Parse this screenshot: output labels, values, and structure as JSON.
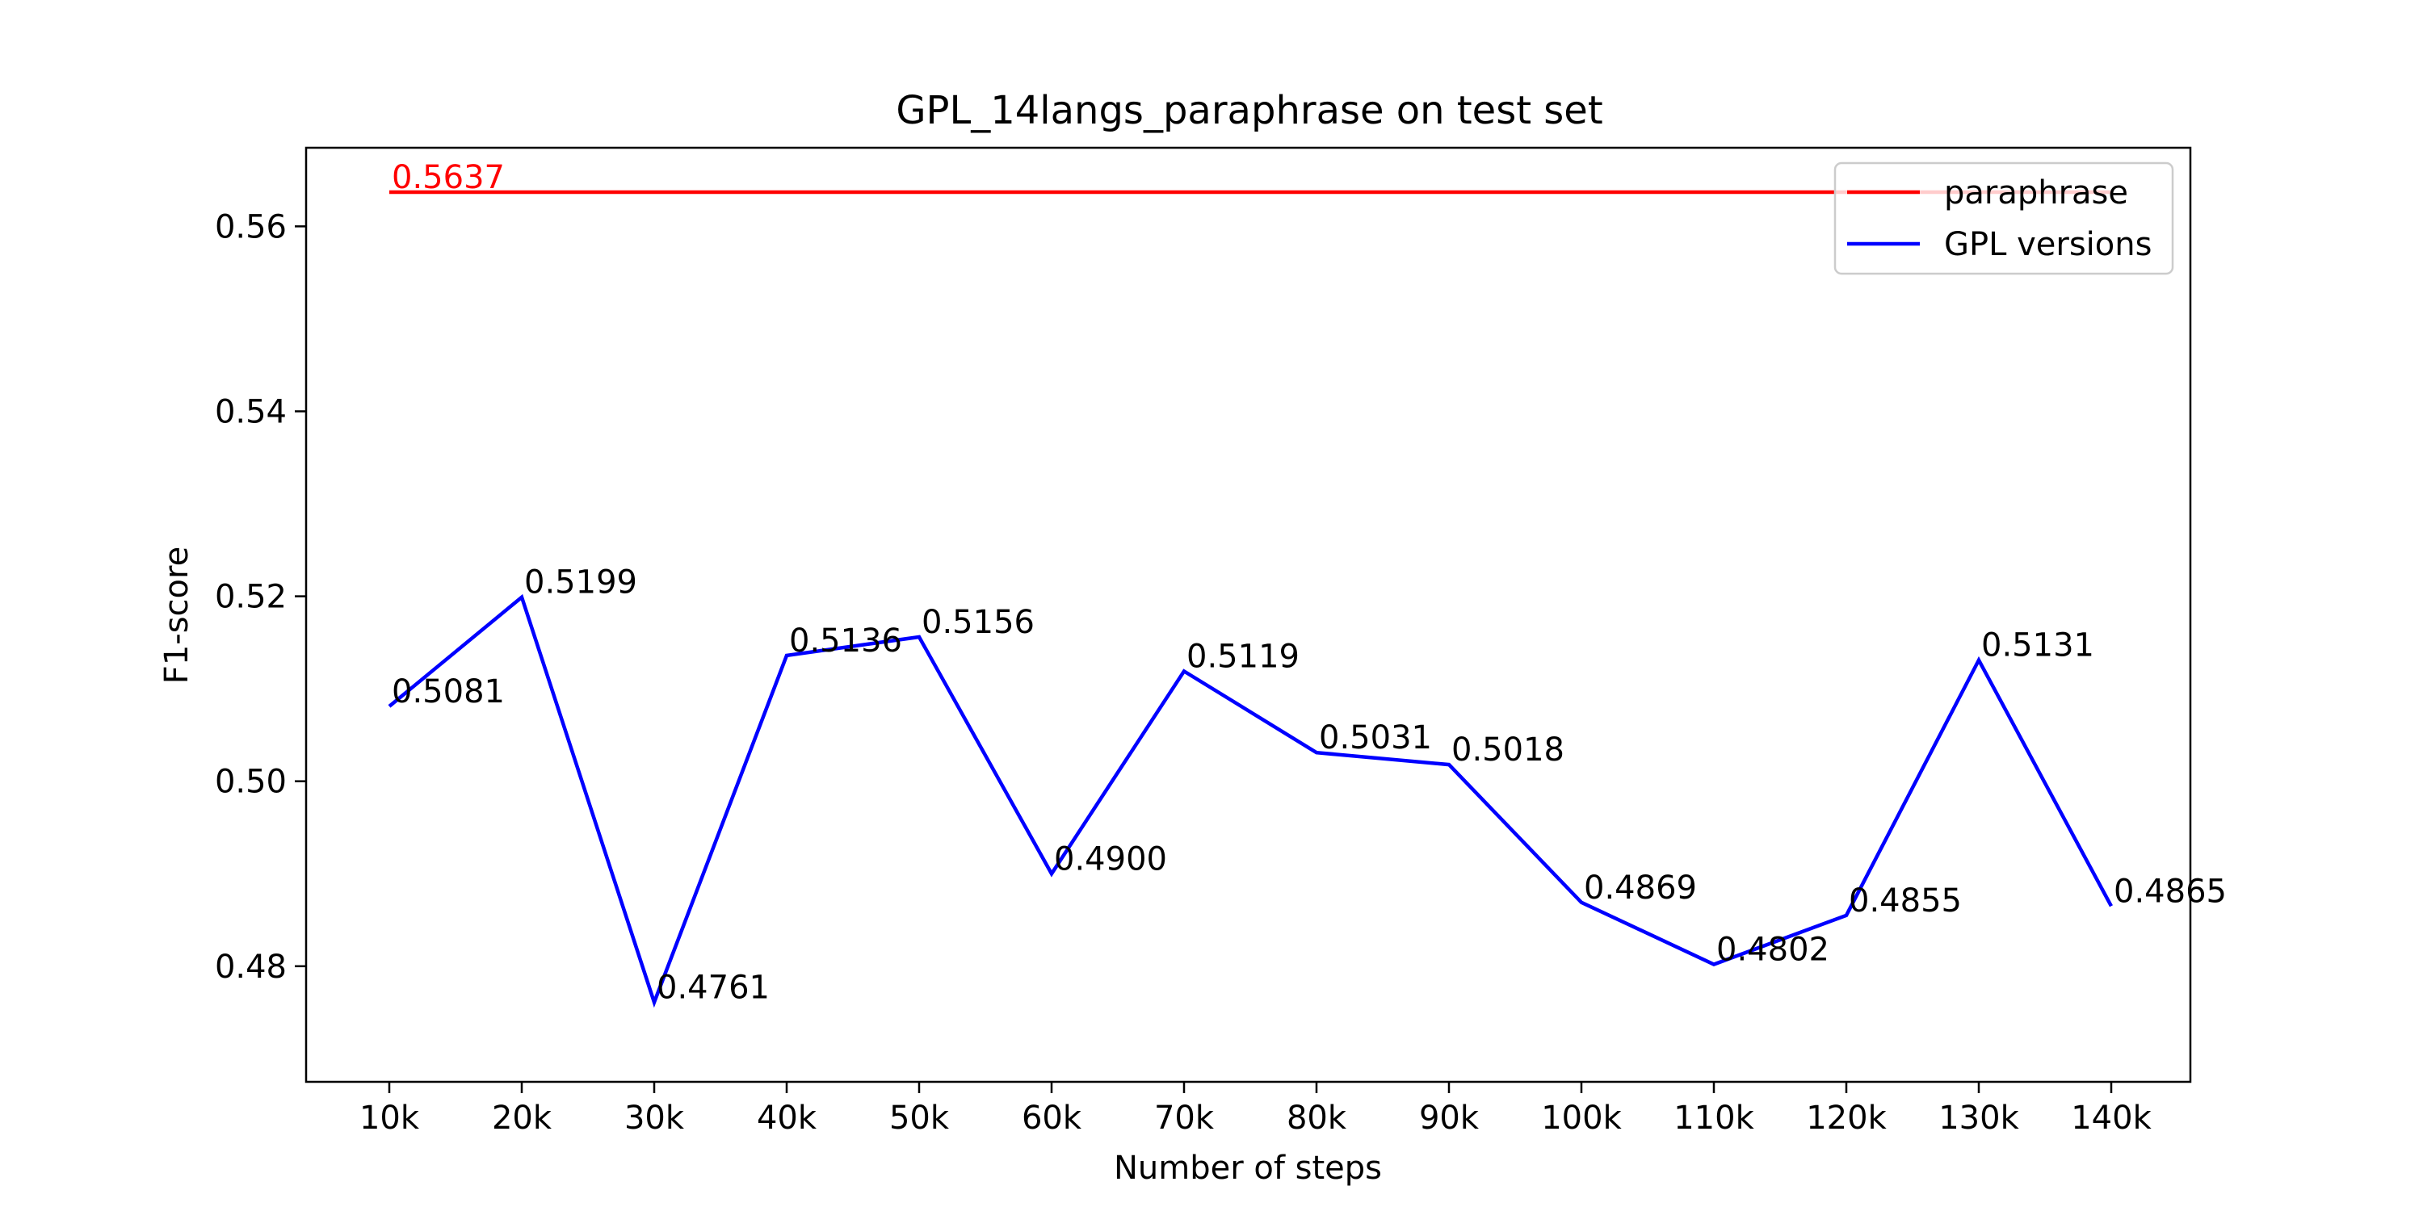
{
  "chart_data": {
    "type": "line",
    "title": "GPL_14langs_paraphrase on test set",
    "xlabel": "Number of steps",
    "ylabel": "F1-score",
    "categories": [
      "10k",
      "20k",
      "30k",
      "40k",
      "50k",
      "60k",
      "70k",
      "80k",
      "90k",
      "100k",
      "110k",
      "120k",
      "130k",
      "140k"
    ],
    "ylim": [
      0.4675,
      0.5685
    ],
    "yticks": [
      0.48,
      0.5,
      0.52,
      0.54,
      0.56
    ],
    "ytick_labels": [
      "0.48",
      "0.50",
      "0.52",
      "0.54",
      "0.56"
    ],
    "grid": false,
    "legend_position": "top-right",
    "series": [
      {
        "name": "paraphrase",
        "color": "#ff0000",
        "values": [
          0.5637,
          0.5637,
          0.5637,
          0.5637,
          0.5637,
          0.5637,
          0.5637,
          0.5637,
          0.5637,
          0.5637,
          0.5637,
          0.5637,
          0.5637,
          0.5637
        ],
        "point_labels": [
          "0.5637"
        ]
      },
      {
        "name": "GPL versions",
        "color": "#0000ff",
        "values": [
          0.5081,
          0.5199,
          0.4761,
          0.5136,
          0.5156,
          0.49,
          0.5119,
          0.5031,
          0.5018,
          0.4869,
          0.4802,
          0.4855,
          0.5131,
          0.4865
        ],
        "point_labels": [
          "0.5081",
          "0.5199",
          "0.4761",
          "0.5136",
          "0.5156",
          "0.4900",
          "0.5119",
          "0.5031",
          "0.5018",
          "0.4869",
          "0.4802",
          "0.4855",
          "0.5131",
          "0.4865"
        ]
      }
    ]
  }
}
